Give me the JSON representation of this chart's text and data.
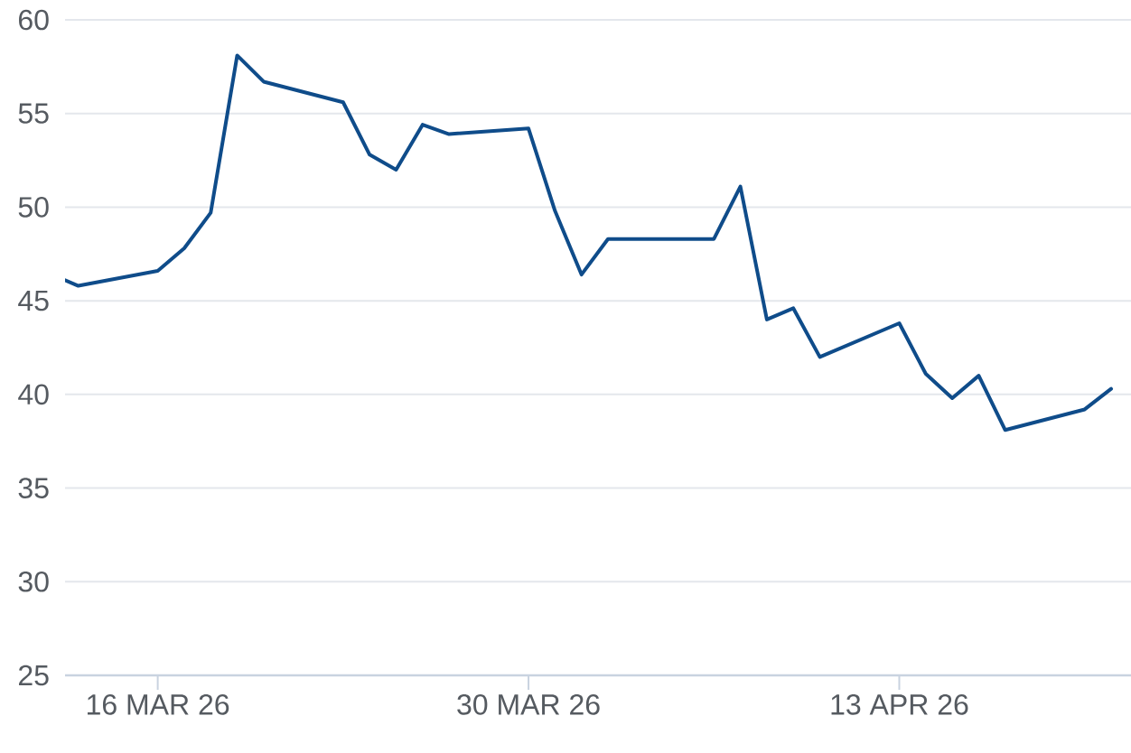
{
  "chart_data": {
    "type": "line",
    "color": "#0f4c8a",
    "x": [
      "2026-03-12T12:00",
      "2026-03-13",
      "2026-03-16",
      "2026-03-17",
      "2026-03-18",
      "2026-03-19",
      "2026-03-20",
      "2026-03-23",
      "2026-03-24",
      "2026-03-25",
      "2026-03-26",
      "2026-03-27",
      "2026-03-30",
      "2026-03-31",
      "2026-04-01",
      "2026-04-02",
      "2026-04-06",
      "2026-04-07",
      "2026-04-08",
      "2026-04-09",
      "2026-04-10",
      "2026-04-13",
      "2026-04-14",
      "2026-04-15",
      "2026-04-16",
      "2026-04-17",
      "2026-04-20",
      "2026-04-21"
    ],
    "values": [
      46.1,
      45.8,
      46.6,
      47.8,
      49.7,
      58.1,
      56.7,
      55.6,
      52.8,
      52.0,
      54.4,
      53.9,
      54.2,
      49.8,
      46.4,
      48.3,
      48.3,
      51.1,
      44.0,
      44.6,
      42.0,
      43.8,
      41.1,
      39.8,
      41.0,
      38.1,
      39.2,
      40.3
    ],
    "xlim": [
      "2026-03-12T12:00",
      "2026-04-21T18:00"
    ],
    "xticks": [
      {
        "value": "2026-03-16",
        "label": "16 MAR 26"
      },
      {
        "value": "2026-03-30",
        "label": "30 MAR 26"
      },
      {
        "value": "2026-04-13",
        "label": "13 APR 26"
      }
    ],
    "ylim": [
      25,
      60
    ],
    "yticks": [
      25,
      30,
      35,
      40,
      45,
      50,
      55,
      60
    ],
    "grid": "y",
    "line_style": "solid"
  }
}
